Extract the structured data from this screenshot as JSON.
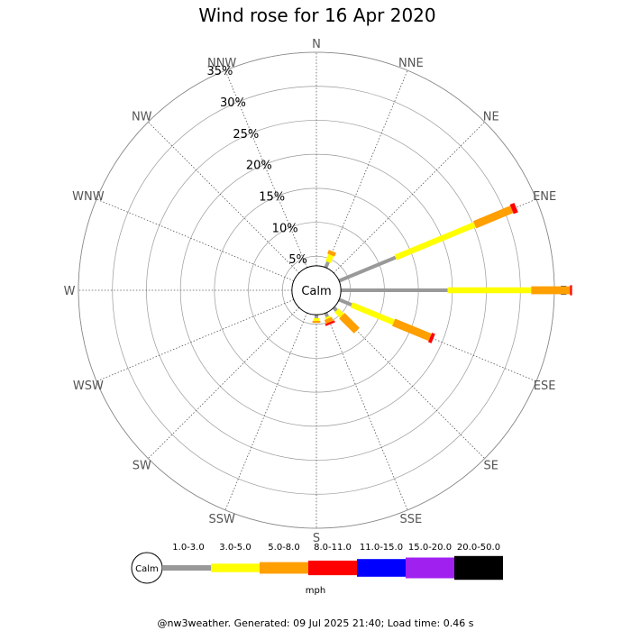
{
  "chart_data": {
    "type": "wind-rose",
    "title": "Wind rose for 16 Apr 2020",
    "unit": "mph",
    "calm_label": "Calm",
    "directions": [
      "N",
      "NNE",
      "NE",
      "ENE",
      "E",
      "ESE",
      "SE",
      "SSE",
      "S",
      "SSW",
      "SW",
      "WSW",
      "W",
      "WNW",
      "NW",
      "NNW"
    ],
    "radial_ticks": [
      "5%",
      "10%",
      "15%",
      "20%",
      "25%",
      "30%",
      "35%"
    ],
    "radial_values": [
      5,
      10,
      15,
      20,
      25,
      30,
      35
    ],
    "radial_max": 35,
    "calm_radius_pct": 3.6,
    "speed_bins": [
      {
        "label": "1.0-3.0",
        "color": "#999999"
      },
      {
        "label": "3.0-5.0",
        "color": "#ffff00"
      },
      {
        "label": "5.0-8.0",
        "color": "#ff9f00"
      },
      {
        "label": "8.0-11.0",
        "color": "#ff0000"
      },
      {
        "label": "11.0-15.0",
        "color": "#0000ff"
      },
      {
        "label": "15.0-20.0",
        "color": "#a020f0"
      },
      {
        "label": "20.0-50.0",
        "color": "#000000"
      }
    ],
    "sectors": [
      {
        "dir": "NNE",
        "values": [
          0.9,
          1.1,
          0.6,
          0,
          0,
          0,
          0
        ]
      },
      {
        "dir": "ENE",
        "values": [
          9.0,
          12.6,
          5.9,
          0.7,
          0,
          0,
          0
        ]
      },
      {
        "dir": "E",
        "values": [
          15.7,
          12.3,
          5.7,
          0.3,
          0,
          0,
          0
        ]
      },
      {
        "dir": "ESE",
        "values": [
          2.0,
          6.7,
          5.8,
          0.5,
          0,
          0,
          0
        ]
      },
      {
        "dir": "SE",
        "values": [
          0.6,
          1.1,
          3.1,
          0,
          0,
          0,
          0
        ]
      },
      {
        "dir": "SSE",
        "values": [
          0.6,
          0.3,
          0.6,
          0.3,
          0,
          0,
          0
        ]
      },
      {
        "dir": "S",
        "values": [
          0.5,
          0.4,
          0.3,
          0,
          0,
          0,
          0
        ]
      }
    ]
  },
  "footer": "@nw3weather. Generated: 09 Jul 2025 21:40; Load time: 0.46 s"
}
